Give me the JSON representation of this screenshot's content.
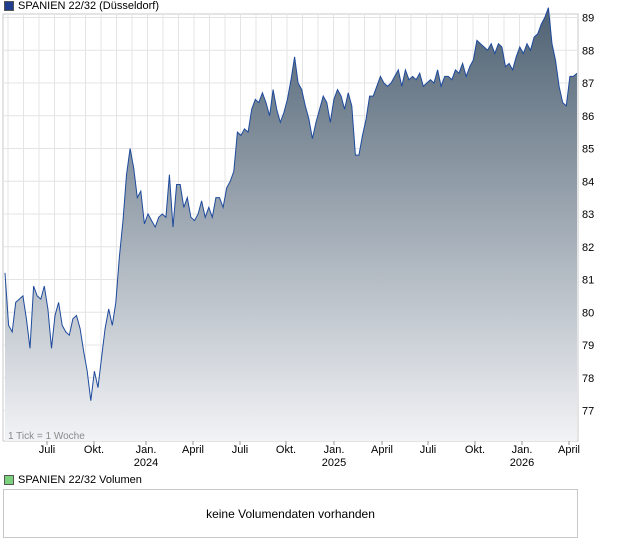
{
  "price_legend": {
    "label": "SPANIEN 22/32 (Düsseldorf)",
    "color": "#1f3d8c"
  },
  "volume_legend": {
    "label": "SPANIEN 22/32 Volumen",
    "color": "#7ccf7c"
  },
  "tick_note": "1 Tick = 1 Woche",
  "volume_message": "keine Volumendaten vorhanden",
  "chart_data": {
    "type": "area",
    "series": [
      {
        "values": [
          81.2,
          79.6,
          79.4,
          80.3,
          80.4,
          80.5,
          79.8,
          78.9,
          80.8,
          80.5,
          80.4,
          80.8,
          80.1,
          78.9,
          79.9,
          80.3,
          79.6,
          79.4,
          79.3,
          79.8,
          79.9,
          79.5,
          78.8,
          78.2,
          77.3,
          78.2,
          77.7,
          78.6,
          79.5,
          80.1,
          79.6,
          80.3,
          81.7,
          82.8,
          84.2,
          85.0,
          84.4,
          83.5,
          83.7,
          82.7,
          83.0,
          82.8,
          82.6,
          82.9,
          83.0,
          82.9,
          84.2,
          82.6,
          83.9,
          83.9,
          83.2,
          83.5,
          82.9,
          82.8,
          83.0,
          83.4,
          82.9,
          83.2,
          82.9,
          83.5,
          83.5,
          83.2,
          83.8,
          84.0,
          84.3,
          85.5,
          85.4,
          85.6,
          85.5,
          86.2,
          86.5,
          86.4,
          86.7,
          86.4,
          86.0,
          86.8,
          86.2,
          85.8,
          86.1,
          86.5,
          87.1,
          87.8,
          87.0,
          86.8,
          86.3,
          85.9,
          85.3,
          85.8,
          86.2,
          86.6,
          86.4,
          85.8,
          86.5,
          86.8,
          86.6,
          86.2,
          86.7,
          86.3,
          84.8,
          84.8,
          85.4,
          85.9,
          86.6,
          86.6,
          86.9,
          87.2,
          87.0,
          86.9,
          87.0,
          87.2,
          87.4,
          86.9,
          87.4,
          87.1,
          87.2,
          87.1,
          87.3,
          86.9,
          87.0,
          87.1,
          87.0,
          87.4,
          86.9,
          87.2,
          87.2,
          87.1,
          87.4,
          87.3,
          87.6,
          87.2,
          87.5,
          87.7,
          88.3,
          88.2,
          88.1,
          88.0,
          88.2,
          87.9,
          88.2,
          88.1,
          87.5,
          87.6,
          87.4,
          87.8,
          88.1,
          87.9,
          88.2,
          88.0,
          88.4,
          88.5,
          88.8,
          89.0,
          89.3,
          88.2,
          87.7,
          86.9,
          86.4,
          86.3,
          87.2,
          87.2,
          87.3
        ]
      }
    ],
    "y_ticks": [
      77,
      78,
      79,
      80,
      81,
      82,
      83,
      84,
      85,
      86,
      87,
      88,
      89
    ],
    "x_ticks": [
      {
        "label": "Juli",
        "year": ""
      },
      {
        "label": "Okt.",
        "year": ""
      },
      {
        "label": "Jan.",
        "year": "2024"
      },
      {
        "label": "April",
        "year": ""
      },
      {
        "label": "Juli",
        "year": ""
      },
      {
        "label": "Okt.",
        "year": ""
      },
      {
        "label": "Jan.",
        "year": "2025"
      },
      {
        "label": "April",
        "year": ""
      },
      {
        "label": "Juli",
        "year": ""
      },
      {
        "label": "Okt.",
        "year": ""
      },
      {
        "label": "Jan.",
        "year": "2026"
      },
      {
        "label": "April",
        "year": ""
      }
    ],
    "grid": true,
    "line_color": "#1e4a9c",
    "fill_top_color": "#4f6273",
    "fill_bottom_color": "#f2f3f6"
  }
}
